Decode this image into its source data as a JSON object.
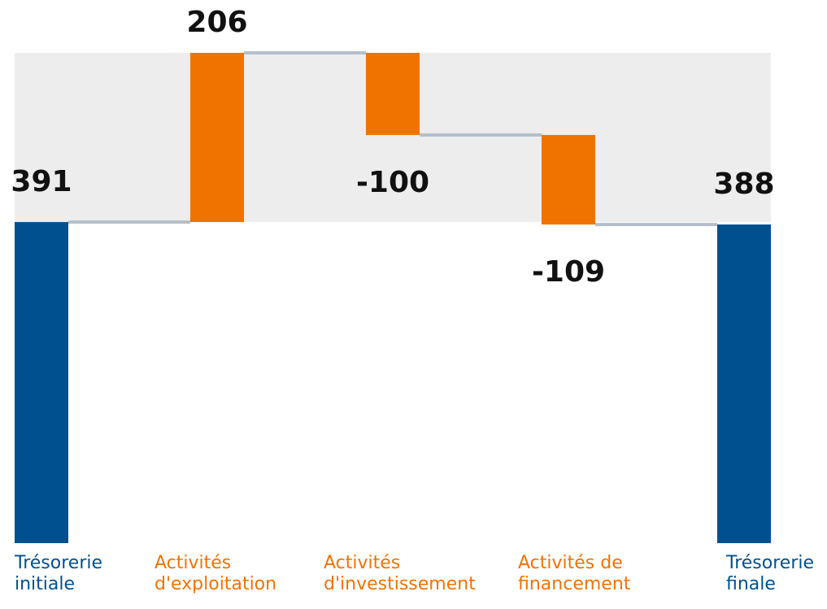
{
  "chart_data": {
    "type": "waterfall",
    "categories": [
      "Trésorerie initiale",
      "Activités d'exploitation",
      "Activités d'investissement",
      "Activités de financement",
      "Trésorerie finale"
    ],
    "values": [
      391,
      206,
      -100,
      -109,
      388
    ],
    "is_total": [
      true,
      false,
      false,
      false,
      true
    ],
    "total_color": "#00508f",
    "delta_color": "#f07300",
    "connector_color": "#b4bfca",
    "band_color": "#ededed"
  }
}
